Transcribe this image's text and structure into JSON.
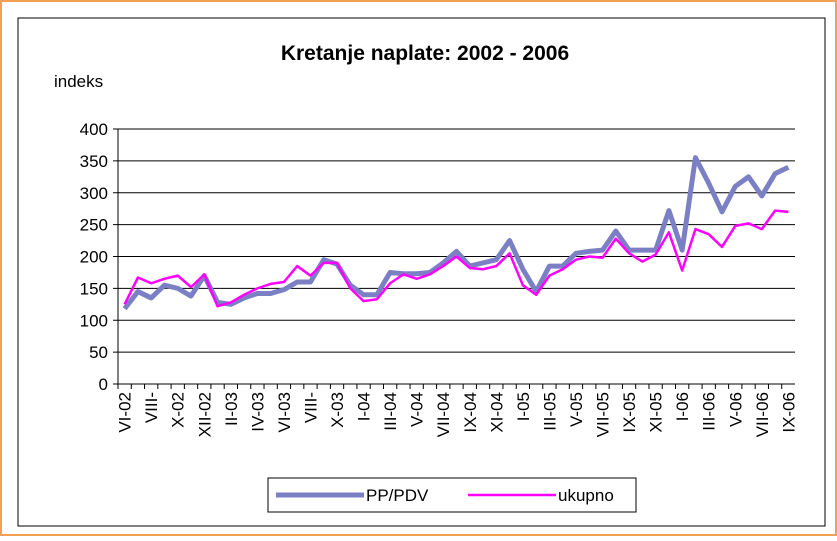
{
  "chart_data": {
    "type": "line",
    "title": "Kretanje naplate:  2002 -  2006",
    "y_label": "indeks",
    "categories": [
      "VI-02",
      null,
      "VIII-",
      null,
      "X-02",
      null,
      "XII-02",
      null,
      "II-03",
      null,
      "IV-03",
      null,
      "VI-03",
      null,
      "VIII-",
      null,
      "X-03",
      null,
      "I-04",
      null,
      "III-04",
      null,
      "V-04",
      null,
      "VII-04",
      null,
      "IX-04",
      null,
      "XI-04",
      null,
      "I-05",
      null,
      "III-05",
      null,
      "V-05",
      null,
      "VII-05",
      null,
      "IX-05",
      null,
      "XI-05",
      null,
      "I-06",
      null,
      "III-06",
      null,
      "V-06",
      null,
      "VII-06",
      null,
      "IX-06"
    ],
    "series": [
      {
        "name": "PP/PDV",
        "color": "#7b80c4",
        "values": [
          118,
          145,
          135,
          155,
          150,
          138,
          170,
          128,
          125,
          135,
          142,
          142,
          148,
          160,
          160,
          195,
          188,
          155,
          140,
          140,
          175,
          173,
          173,
          175,
          190,
          208,
          185,
          190,
          195,
          225,
          180,
          145,
          185,
          185,
          205,
          208,
          210,
          240,
          210,
          210,
          210,
          272,
          210,
          355,
          315,
          270,
          310,
          325,
          295,
          330,
          340
        ]
      },
      {
        "name": "ukupno",
        "color": "#ff00ff",
        "values": [
          125,
          167,
          158,
          165,
          170,
          152,
          172,
          122,
          128,
          140,
          150,
          157,
          160,
          185,
          170,
          190,
          190,
          150,
          130,
          133,
          158,
          172,
          165,
          172,
          185,
          200,
          182,
          180,
          185,
          205,
          155,
          140,
          170,
          180,
          195,
          200,
          198,
          228,
          205,
          192,
          203,
          238,
          178,
          243,
          235,
          215,
          248,
          252,
          243,
          272,
          270
        ]
      }
    ],
    "ylim": [
      0,
      400
    ],
    "yticks": [
      0,
      50,
      100,
      150,
      200,
      250,
      300,
      350,
      400
    ],
    "grid": true,
    "legend": "bottom"
  }
}
